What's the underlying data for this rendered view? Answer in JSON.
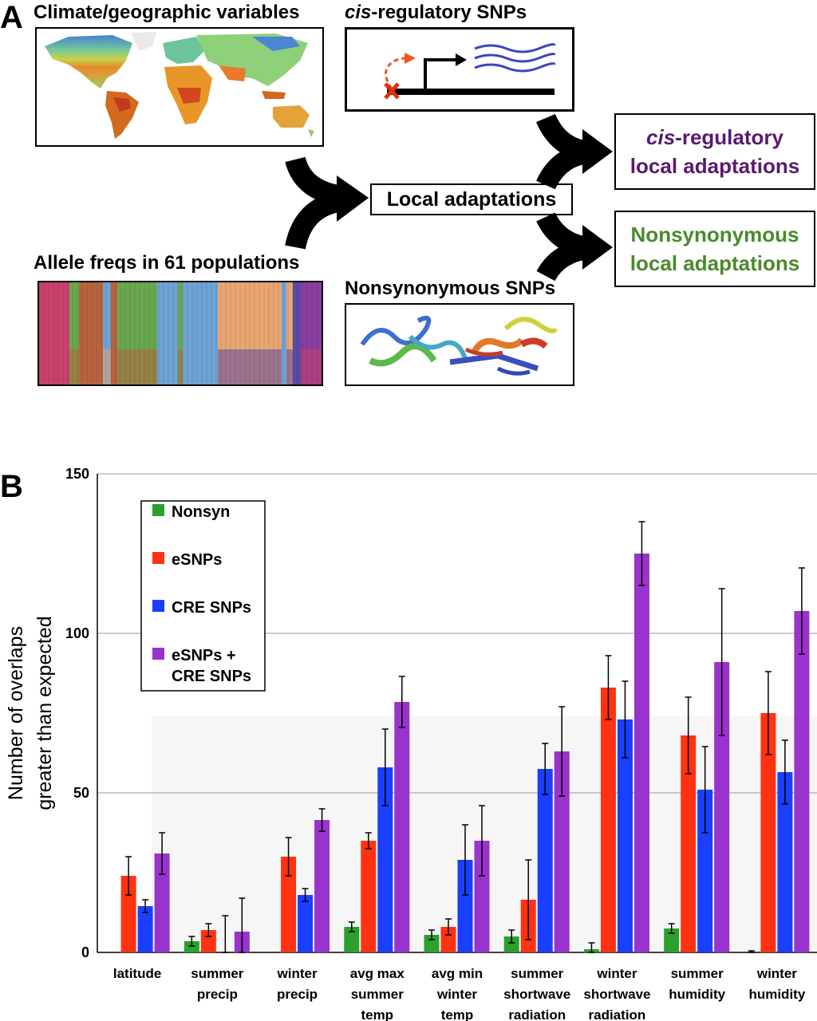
{
  "panel_a": {
    "letter": "A",
    "climate_label": "Climate/geographic variables",
    "allele_label": "Allele freqs in 61 populations",
    "cis_snp_label_italic": "cis",
    "cis_snp_label_rest": "-regulatory SNPs",
    "nonsyn_snp_label": "Nonsynonymous SNPs",
    "local_adaptations": "Local adaptations",
    "cis_outcome_italic": "cis",
    "cis_outcome_line1_rest": "-regulatory",
    "cis_outcome_line2": "local adaptations",
    "nonsyn_outcome_line1": "Nonsynonymous",
    "nonsyn_outcome_line2": "local adaptations",
    "colors": {
      "cis_purple": "#5a1a6e",
      "nonsyn_green": "#4a8a2a",
      "arrow_orange": "#ee5522",
      "transcript_blue": "#3a46c0"
    },
    "population_colors": [
      "#c8426a",
      "#6aa84f",
      "#b8633e",
      "#6fa3d6",
      "#e8a671",
      "#5b4aa6",
      "#8a3fa0"
    ]
  },
  "panel_b": {
    "letter": "B"
  },
  "chart_data": {
    "type": "bar",
    "categories": [
      [
        "latitude"
      ],
      [
        "summer",
        "precip"
      ],
      [
        "winter",
        "precip"
      ],
      [
        "avg max",
        "summer",
        "temp"
      ],
      [
        "avg min",
        "winter",
        "temp"
      ],
      [
        "summer",
        "shortwave",
        "radiation"
      ],
      [
        "winter",
        "shortwave",
        "radiation"
      ],
      [
        "summer",
        "humidity"
      ],
      [
        "winter",
        "humidity"
      ]
    ],
    "series": [
      {
        "name": "Nonsyn",
        "color": "#2ca02c",
        "values": [
          0,
          3.5,
          0,
          8,
          5.5,
          5,
          1,
          7.5,
          0
        ],
        "errors": [
          0,
          1.5,
          0,
          1.5,
          1.5,
          2,
          2,
          1.5,
          0.5
        ]
      },
      {
        "name": "eSNPs",
        "color": "#ff3311",
        "values": [
          24,
          7,
          30,
          35,
          8,
          16.5,
          83,
          68,
          75
        ],
        "errors": [
          6,
          2,
          6,
          2.5,
          2.5,
          12.5,
          10,
          12,
          13
        ]
      },
      {
        "name": "CRE SNPs",
        "color": "#1a3fff",
        "values": [
          14.5,
          0,
          18,
          58,
          29,
          57.5,
          73,
          51,
          56.5
        ],
        "errors": [
          2,
          11.5,
          2,
          12,
          11,
          8,
          12,
          13.5,
          10
        ]
      },
      {
        "name": "eSNPs + CRE SNPs",
        "color": "#9933cc",
        "values": [
          31,
          6.5,
          41.5,
          78.5,
          35,
          63,
          125,
          91,
          107
        ],
        "errors": [
          6.5,
          10.5,
          3.5,
          8,
          11,
          14,
          10,
          23,
          13.5
        ]
      }
    ],
    "legend_labels": [
      [
        "Nonsyn"
      ],
      [
        "eSNPs"
      ],
      [
        "CRE SNPs"
      ],
      [
        "eSNPs +",
        "CRE SNPs"
      ]
    ],
    "ylabel_lines": [
      "Number of overlaps",
      "greater than expected"
    ],
    "yticks": [
      0,
      50,
      100,
      150
    ],
    "ylim": [
      0,
      150
    ],
    "grid": true,
    "legend_position": "top-left"
  }
}
